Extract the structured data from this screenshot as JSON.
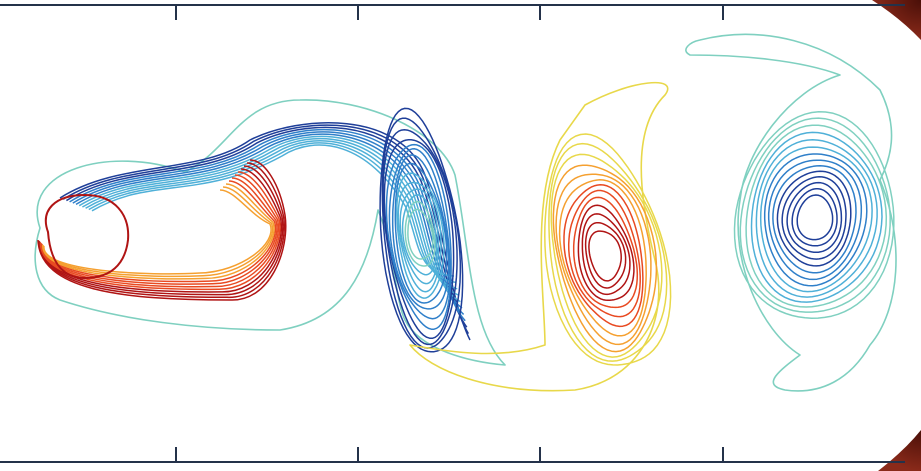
{
  "chart_data": {
    "type": "contour",
    "title": "",
    "xlabel": "",
    "ylabel": "",
    "x_tick_count": 4,
    "x_tick_labels": [
      "",
      "",
      "",
      ""
    ],
    "grid": false,
    "legend": "none",
    "colormap": [
      "#1f3f99",
      "#2f7fc9",
      "#4fb0d8",
      "#7fd0c0",
      "#b8dc7a",
      "#e8d84a",
      "#f5a030",
      "#e84a22",
      "#b01414"
    ],
    "series": [
      {
        "kind": "wake_vortex",
        "sign": "mixed",
        "levels": 22
      },
      {
        "kind": "vortex",
        "sign": "negative",
        "levels": 14
      },
      {
        "kind": "vortex",
        "sign": "positive",
        "levels": 13
      },
      {
        "kind": "vortex",
        "sign": "negative",
        "levels": 14
      }
    ]
  },
  "colors": {
    "axis": "#24324a",
    "background": "#ffffff",
    "corner_accent": "#6b1a12"
  }
}
